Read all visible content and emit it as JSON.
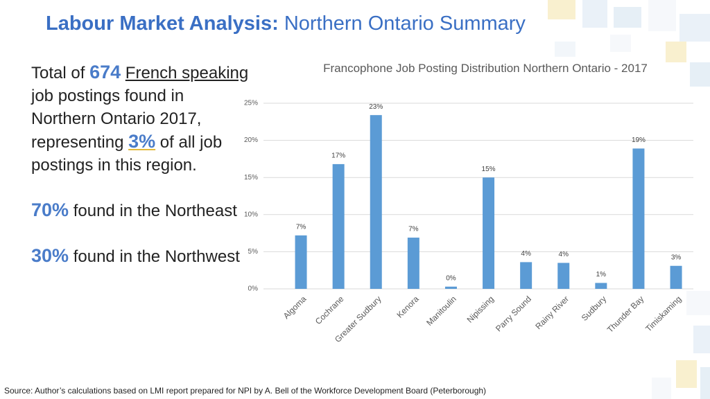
{
  "header": {
    "title_bold": "Labour Market Analysis:",
    "title_rest": "Northern Ontario Summary"
  },
  "summary": {
    "p1_a": "Total of",
    "p1_count": "674",
    "p1_link": "French speaking",
    "p1_b": "job postings found in Northern Ontario 2017, representing",
    "p1_pct": "3%",
    "p1_c": "of all job postings in this region.",
    "p2_pct": "70%",
    "p2_text": "found in the Northeast",
    "p3_pct": "30%",
    "p3_text": "found in the Northwest"
  },
  "footer": {
    "source": "Source: Author’s calculations based on LMI report prepared for NPI by A. Bell of the Workforce Development Board (Peterborough)"
  },
  "chart_data": {
    "type": "bar",
    "title": "Francophone Job Posting Distribution Northern Ontario - 2017",
    "categories": [
      "Algoma",
      "Cochrane",
      "Greater Sudbury",
      "Kenora",
      "Manitoulin",
      "Nipissing",
      "Parry Sound",
      "Rainy River",
      "Sudbury",
      "Thunder Bay",
      "Timiskaming"
    ],
    "values": [
      7.2,
      16.8,
      23.4,
      6.9,
      0.3,
      15.0,
      3.6,
      3.5,
      0.8,
      18.9,
      3.1
    ],
    "value_labels": [
      "7%",
      "17%",
      "23%",
      "7%",
      "0%",
      "15%",
      "4%",
      "4%",
      "1%",
      "19%",
      "3%"
    ],
    "color": "#5b9bd5",
    "ylim": [
      0,
      25
    ],
    "yticks": [
      {
        "value": 0,
        "label": "0%"
      },
      {
        "value": 5,
        "label": "5%"
      },
      {
        "value": 10,
        "label": "10%"
      },
      {
        "value": 15,
        "label": "15%"
      },
      {
        "value": 20,
        "label": "20%"
      },
      {
        "value": 25,
        "label": "25%"
      }
    ],
    "grid": true
  }
}
